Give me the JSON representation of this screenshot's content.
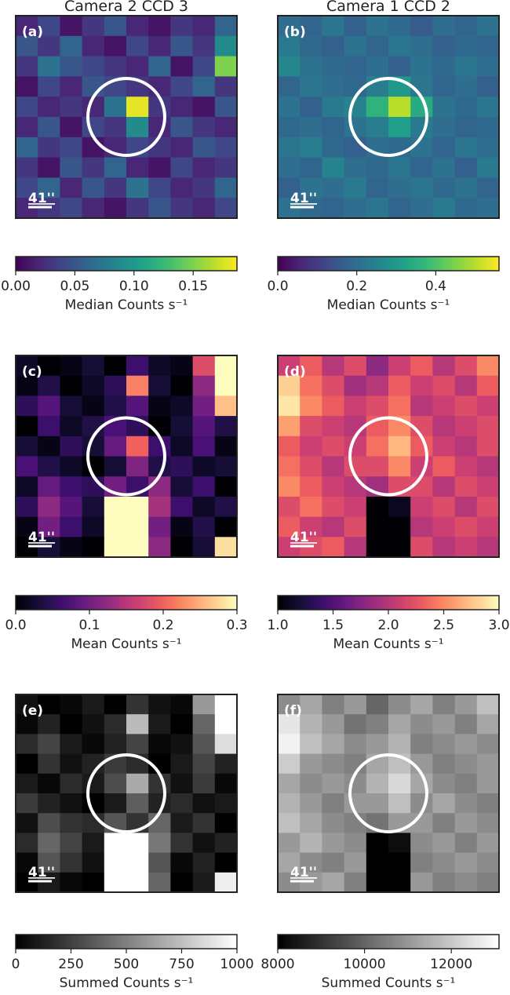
{
  "chart_data": [
    {
      "type": "heatmap",
      "title": "Camera 2 CCD 3",
      "panel_label": "(a)",
      "scale_label": "41''",
      "cmap": "viridis",
      "colorbar_label": "Median Counts s⁻¹",
      "clim": [
        0,
        0.187
      ],
      "cticks": [
        {
          "value": 0,
          "label": "0.00"
        },
        0.05,
        {
          "value": 0.1,
          "label": "0.10"
        },
        0.15
      ],
      "z": [
        [
          0.02,
          0.04,
          0.01,
          0.03,
          0.05,
          0.02,
          0.01,
          0.03,
          0.02,
          0.06
        ],
        [
          0.05,
          0.03,
          0.06,
          0.02,
          0.01,
          0.04,
          0.02,
          0.05,
          0.03,
          0.09
        ],
        [
          0.03,
          0.07,
          0.05,
          0.04,
          0.03,
          0.02,
          0.06,
          0.01,
          0.04,
          0.15
        ],
        [
          0.01,
          0.04,
          0.02,
          0.05,
          0.04,
          0.03,
          0.02,
          0.04,
          0.06,
          0.03
        ],
        [
          0.04,
          0.02,
          0.03,
          0.02,
          0.07,
          0.18,
          0.03,
          0.02,
          0.01,
          0.05
        ],
        [
          0.02,
          0.05,
          0.01,
          0.04,
          0.03,
          0.09,
          0.02,
          0.05,
          0.03,
          0.02
        ],
        [
          0.06,
          0.03,
          0.04,
          0.01,
          0.02,
          0.04,
          0.03,
          0.02,
          0.05,
          0.04
        ],
        [
          0.03,
          0.01,
          0.05,
          0.03,
          0.06,
          0.02,
          0.01,
          0.04,
          0.02,
          0.03
        ],
        [
          0.04,
          0.06,
          0.02,
          0.05,
          0.03,
          0.07,
          0.04,
          0.02,
          0.03,
          0.06
        ],
        [
          0.02,
          0.03,
          0.04,
          0.02,
          0.01,
          0.03,
          0.05,
          0.03,
          0.02,
          0.04
        ]
      ]
    },
    {
      "type": "heatmap",
      "title": "Camera 1 CCD 2",
      "panel_label": "(b)",
      "scale_label": "41''",
      "cmap": "viridis",
      "colorbar_label": "Median Counts s⁻¹",
      "clim": [
        0,
        0.56
      ],
      "cticks": [
        {
          "value": 0,
          "label": "0.0"
        },
        0.2,
        0.4
      ],
      "z": [
        [
          0.2,
          0.18,
          0.22,
          0.17,
          0.21,
          0.19,
          0.16,
          0.2,
          0.18,
          0.21
        ],
        [
          0.23,
          0.19,
          0.17,
          0.21,
          0.18,
          0.22,
          0.2,
          0.17,
          0.19,
          0.18
        ],
        [
          0.26,
          0.21,
          0.19,
          0.18,
          0.2,
          0.17,
          0.21,
          0.19,
          0.22,
          0.2
        ],
        [
          0.18,
          0.22,
          0.2,
          0.19,
          0.24,
          0.3,
          0.22,
          0.18,
          0.2,
          0.17
        ],
        [
          0.21,
          0.17,
          0.23,
          0.25,
          0.36,
          0.5,
          0.34,
          0.21,
          0.19,
          0.22
        ],
        [
          0.19,
          0.2,
          0.18,
          0.21,
          0.24,
          0.31,
          0.23,
          0.2,
          0.18,
          0.19
        ],
        [
          0.22,
          0.24,
          0.19,
          0.17,
          0.2,
          0.19,
          0.21,
          0.18,
          0.22,
          0.2
        ],
        [
          0.2,
          0.18,
          0.25,
          0.2,
          0.19,
          0.22,
          0.18,
          0.21,
          0.17,
          0.23
        ],
        [
          0.17,
          0.21,
          0.2,
          0.23,
          0.18,
          0.2,
          0.22,
          0.19,
          0.21,
          0.18
        ],
        [
          0.21,
          0.19,
          0.18,
          0.2,
          0.22,
          0.18,
          0.2,
          0.23,
          0.19,
          0.2
        ]
      ]
    },
    {
      "type": "heatmap",
      "panel_label": "(c)",
      "scale_label": "41''",
      "cmap": "magma",
      "colorbar_label": "Mean Counts s⁻¹",
      "clim": [
        0,
        0.3
      ],
      "cticks": [
        {
          "value": 0,
          "label": "0.0"
        },
        0.1,
        0.2,
        0.3
      ],
      "z": [
        [
          0.02,
          0.0,
          0.01,
          0.03,
          0.0,
          0.06,
          0.02,
          0.01,
          0.18,
          0.3
        ],
        [
          0.01,
          0.04,
          0.0,
          0.02,
          0.05,
          0.22,
          0.03,
          0.0,
          0.12,
          0.3
        ],
        [
          0.05,
          0.08,
          0.03,
          0.01,
          0.04,
          0.08,
          0.01,
          0.02,
          0.1,
          0.26
        ],
        [
          0.0,
          0.06,
          0.02,
          0.04,
          0.07,
          0.05,
          0.0,
          0.03,
          0.08,
          0.04
        ],
        [
          0.03,
          0.01,
          0.05,
          0.03,
          0.09,
          0.2,
          0.06,
          0.02,
          0.07,
          0.01
        ],
        [
          0.07,
          0.04,
          0.02,
          0.0,
          0.03,
          0.11,
          0.04,
          0.05,
          0.02,
          0.03
        ],
        [
          0.02,
          0.09,
          0.06,
          0.05,
          0.1,
          0.06,
          0.12,
          0.03,
          0.06,
          0.0
        ],
        [
          0.05,
          0.12,
          0.08,
          0.03,
          0.3,
          0.3,
          0.14,
          0.06,
          0.02,
          0.04
        ],
        [
          0.01,
          0.1,
          0.06,
          0.02,
          0.3,
          0.3,
          0.1,
          0.01,
          0.04,
          0.0
        ],
        [
          0.0,
          0.03,
          0.01,
          0.0,
          0.3,
          0.3,
          0.12,
          0.0,
          0.03,
          0.28
        ]
      ]
    },
    {
      "type": "heatmap",
      "panel_label": "(d)",
      "scale_label": "41''",
      "cmap": "magma",
      "colorbar_label": "Mean Counts s⁻¹",
      "clim": [
        1,
        3
      ],
      "cticks": [
        {
          "value": 1,
          "label": "1.0"
        },
        1.5,
        {
          "value": 2,
          "label": "2.0"
        },
        2.5,
        {
          "value": 3,
          "label": "3.0"
        }
      ],
      "z": [
        [
          2.1,
          2.3,
          2.0,
          2.2,
          1.8,
          2.1,
          2.3,
          2.0,
          2.2,
          2.5
        ],
        [
          2.8,
          2.4,
          2.2,
          1.9,
          2.0,
          2.3,
          2.1,
          2.2,
          2.0,
          2.3
        ],
        [
          2.9,
          2.5,
          2.3,
          2.1,
          2.2,
          2.4,
          2.0,
          2.1,
          2.2,
          2.1
        ],
        [
          2.6,
          2.2,
          2.1,
          2.0,
          2.3,
          2.5,
          2.2,
          2.0,
          2.1,
          2.2
        ],
        [
          2.3,
          2.1,
          2.2,
          2.1,
          2.4,
          2.7,
          2.3,
          2.1,
          2.0,
          2.2
        ],
        [
          2.4,
          2.2,
          2.0,
          2.2,
          2.2,
          2.5,
          2.1,
          2.3,
          2.1,
          2.0
        ],
        [
          2.5,
          2.3,
          2.1,
          2.0,
          1.9,
          2.2,
          2.2,
          2.0,
          2.2,
          2.1
        ],
        [
          2.2,
          2.4,
          2.2,
          2.1,
          1.0,
          1.1,
          2.1,
          2.2,
          2.0,
          2.2
        ],
        [
          2.3,
          2.1,
          2.0,
          2.2,
          1.0,
          1.0,
          2.0,
          2.1,
          2.2,
          2.1
        ],
        [
          2.1,
          2.2,
          2.3,
          2.0,
          1.0,
          1.0,
          2.2,
          2.0,
          2.1,
          2.0
        ]
      ]
    },
    {
      "type": "heatmap",
      "panel_label": "(e)",
      "scale_label": "41''",
      "cmap": "gray",
      "colorbar_label": "Summed Counts s⁻¹",
      "clim": [
        0,
        1000
      ],
      "cticks": [
        0,
        250,
        500,
        750,
        1000
      ],
      "z": [
        [
          67,
          0,
          33,
          100,
          0,
          200,
          67,
          33,
          600,
          1000
        ],
        [
          33,
          133,
          0,
          67,
          167,
          733,
          100,
          0,
          400,
          1000
        ],
        [
          167,
          267,
          100,
          33,
          133,
          267,
          33,
          67,
          333,
          867
        ],
        [
          0,
          200,
          67,
          133,
          233,
          167,
          0,
          100,
          267,
          133
        ],
        [
          100,
          33,
          167,
          100,
          300,
          667,
          200,
          67,
          233,
          33
        ],
        [
          233,
          133,
          67,
          0,
          100,
          367,
          133,
          167,
          67,
          100
        ],
        [
          67,
          300,
          200,
          167,
          333,
          200,
          400,
          100,
          200,
          0
        ],
        [
          167,
          400,
          267,
          100,
          1000,
          1000,
          467,
          200,
          67,
          133
        ],
        [
          33,
          333,
          200,
          67,
          1000,
          1000,
          333,
          33,
          133,
          0
        ],
        [
          0,
          100,
          33,
          0,
          1000,
          1000,
          400,
          0,
          100,
          933
        ]
      ]
    },
    {
      "type": "heatmap",
      "panel_label": "(f)",
      "scale_label": "41''",
      "cmap": "gray",
      "colorbar_label": "Summed Counts s⁻¹",
      "clim": [
        8000,
        13100
      ],
      "cticks": [
        8000,
        10000,
        12000
      ],
      "z": [
        [
          10805,
          11315,
          10550,
          11060,
          10040,
          10805,
          11315,
          10550,
          11060,
          11825
        ],
        [
          12590,
          11570,
          11060,
          10295,
          10550,
          11315,
          10805,
          11060,
          10550,
          11315
        ],
        [
          12845,
          11825,
          11315,
          10805,
          11060,
          11570,
          10550,
          10805,
          11060,
          10805
        ],
        [
          12080,
          11060,
          10805,
          10550,
          11315,
          11825,
          11060,
          10550,
          10805,
          11060
        ],
        [
          11315,
          10805,
          11060,
          10805,
          11570,
          12335,
          11315,
          10805,
          10550,
          11060
        ],
        [
          11570,
          11060,
          10550,
          11060,
          11060,
          11825,
          10805,
          11315,
          10805,
          10550
        ],
        [
          11825,
          11315,
          10805,
          10550,
          10295,
          11060,
          11060,
          10550,
          11060,
          10805
        ],
        [
          11060,
          11570,
          11060,
          10805,
          8000,
          8255,
          10805,
          11060,
          10550,
          11060
        ],
        [
          11315,
          10805,
          10550,
          11060,
          8000,
          8000,
          10550,
          10805,
          11060,
          10805
        ],
        [
          10805,
          11060,
          11315,
          10550,
          8000,
          8000,
          11060,
          10550,
          10805,
          10550
        ]
      ]
    }
  ]
}
